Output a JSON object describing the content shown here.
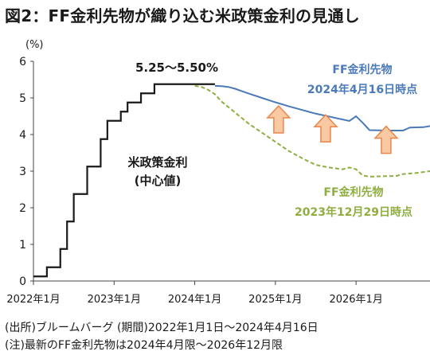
{
  "title": "図2：FF金利先物が織り込む米政策金利の見通し",
  "notes": [
    "(出所)ブルームバーグ (期間)2022年1月1日～2024年4月16日",
    "(注)最新のFF金利先物は2024年4月限～2026年12月限"
  ],
  "colors": {
    "policy_rate": "#1a1a1a",
    "ff_latest": "#4a7ab8",
    "ff_old": "#8fae42",
    "arrow_fill": "#f9c9a4",
    "arrow_stroke": "#e8864a",
    "axis": "#444444"
  },
  "chart_data": {
    "type": "line",
    "unit_label": "(%)",
    "ylim": [
      0,
      6
    ],
    "y_ticks": [
      "0",
      "1",
      "2",
      "3",
      "4",
      "5",
      "6"
    ],
    "xlim": [
      "2022-01",
      "2026-12"
    ],
    "x_ticks": [
      {
        "date": "2022-01",
        "label": "2022年1月"
      },
      {
        "date": "2023-01",
        "label": "2023年1月"
      },
      {
        "date": "2024-01",
        "label": "2024年1月"
      },
      {
        "date": "2025-01",
        "label": "2025年1月"
      },
      {
        "date": "2026-01",
        "label": "2026年1月"
      }
    ],
    "grid": false,
    "series": [
      {
        "name": "米政策金利 (中心値)",
        "style": "step",
        "points": [
          [
            "2022-01",
            0.125
          ],
          [
            "2022-03",
            0.375
          ],
          [
            "2022-05",
            0.875
          ],
          [
            "2022-06",
            1.625
          ],
          [
            "2022-07",
            2.375
          ],
          [
            "2022-09",
            3.125
          ],
          [
            "2022-11",
            3.875
          ],
          [
            "2022-12",
            4.375
          ],
          [
            "2023-02",
            4.625
          ],
          [
            "2023-03",
            4.875
          ],
          [
            "2023-05",
            5.125
          ],
          [
            "2023-07",
            5.375
          ],
          [
            "2024-04",
            5.375
          ]
        ]
      },
      {
        "name": "FF金利先物 2024年4月16日時点",
        "style": "solid",
        "points": [
          [
            "2024-04",
            5.33
          ],
          [
            "2024-05",
            5.32
          ],
          [
            "2024-06",
            5.3
          ],
          [
            "2024-07",
            5.25
          ],
          [
            "2024-09",
            5.12
          ],
          [
            "2024-11",
            5.0
          ],
          [
            "2025-01",
            4.88
          ],
          [
            "2025-03",
            4.77
          ],
          [
            "2025-05",
            4.67
          ],
          [
            "2025-07",
            4.57
          ],
          [
            "2025-09",
            4.49
          ],
          [
            "2025-11",
            4.41
          ],
          [
            "2025-12",
            4.37
          ],
          [
            "2026-01",
            4.5
          ],
          [
            "2026-02",
            4.32
          ],
          [
            "2026-03",
            4.12
          ],
          [
            "2026-06",
            4.11
          ],
          [
            "2026-08",
            4.11
          ],
          [
            "2026-09",
            4.19
          ],
          [
            "2026-11",
            4.2
          ],
          [
            "2026-12",
            4.23
          ]
        ]
      },
      {
        "name": "FF金利先物 2023年12月29日時点",
        "style": "dashed",
        "points": [
          [
            "2024-01",
            5.33
          ],
          [
            "2024-02",
            5.3
          ],
          [
            "2024-03",
            5.22
          ],
          [
            "2024-04",
            5.1
          ],
          [
            "2024-05",
            4.9
          ],
          [
            "2024-07",
            4.6
          ],
          [
            "2024-09",
            4.3
          ],
          [
            "2024-11",
            4.05
          ],
          [
            "2025-01",
            3.8
          ],
          [
            "2025-03",
            3.55
          ],
          [
            "2025-05",
            3.35
          ],
          [
            "2025-07",
            3.17
          ],
          [
            "2025-09",
            3.1
          ],
          [
            "2025-11",
            3.05
          ],
          [
            "2025-12",
            3.1
          ],
          [
            "2026-01",
            3.05
          ],
          [
            "2026-02",
            2.88
          ],
          [
            "2026-03",
            2.85
          ],
          [
            "2026-05",
            2.86
          ],
          [
            "2026-07",
            2.87
          ],
          [
            "2026-08",
            2.92
          ],
          [
            "2026-10",
            2.95
          ],
          [
            "2026-12",
            3.0
          ]
        ]
      }
    ],
    "annotations": {
      "peak": "5.25～5.50%",
      "policy_line1": "米政策金利",
      "policy_line2": "(中心値)",
      "ff_latest_line1": "FF金利先物",
      "ff_latest_line2": "2024年4月16日時点",
      "ff_old_line1": "FF金利先物",
      "ff_old_line2": "2023年12月29日時点"
    },
    "upward_arrows": 3
  }
}
